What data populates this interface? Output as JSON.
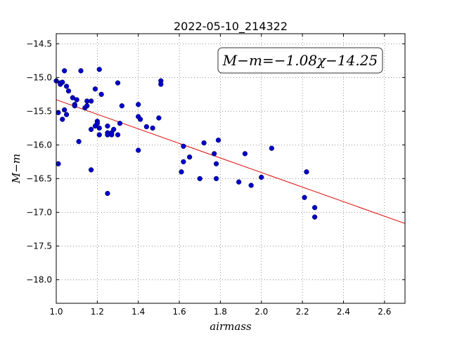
{
  "chart_data": {
    "type": "scatter",
    "title": "2022-05-10_214322",
    "xlabel": "airmass",
    "ylabel": "M−m",
    "xlim": [
      1.0,
      2.7
    ],
    "ylim": [
      -18.35,
      -14.35
    ],
    "y_inverted": true,
    "grid": true,
    "x_ticks": [
      1.0,
      1.2,
      1.4,
      1.6,
      1.8,
      2.0,
      2.2,
      2.4,
      2.6
    ],
    "x_tick_labels": [
      "1.0",
      "1.2",
      "1.4",
      "1.6",
      "1.8",
      "2.0",
      "2.2",
      "2.4",
      "2.6"
    ],
    "y_ticks": [
      -14.5,
      -15.0,
      -15.5,
      -16.0,
      -16.5,
      -17.0,
      -17.5,
      -18.0
    ],
    "y_tick_labels": [
      "−14.5",
      "−15.0",
      "−15.5",
      "−16.0",
      "−16.5",
      "−17.0",
      "−17.5",
      "−18.0"
    ],
    "annotation": "M−m=−1.08χ−14.25",
    "annotation_position": "top-right",
    "colors": {
      "points": "#0000cc",
      "fit": "#dd0000",
      "grid": "#555555"
    },
    "fit": {
      "slope": -1.08,
      "intercept": -14.25
    },
    "points": [
      [
        1.0,
        -15.05
      ],
      [
        1.01,
        -15.52
      ],
      [
        1.01,
        -16.28
      ],
      [
        1.02,
        -15.08
      ],
      [
        1.02,
        -15.1
      ],
      [
        1.03,
        -15.07
      ],
      [
        1.03,
        -15.62
      ],
      [
        1.04,
        -14.9
      ],
      [
        1.04,
        -15.48
      ],
      [
        1.05,
        -15.13
      ],
      [
        1.05,
        -15.55
      ],
      [
        1.06,
        -15.2
      ],
      [
        1.08,
        -15.3
      ],
      [
        1.09,
        -15.4
      ],
      [
        1.09,
        -15.42
      ],
      [
        1.1,
        -15.33
      ],
      [
        1.11,
        -15.95
      ],
      [
        1.12,
        -14.9
      ],
      [
        1.14,
        -15.45
      ],
      [
        1.15,
        -15.42
      ],
      [
        1.15,
        -15.35
      ],
      [
        1.17,
        -15.35
      ],
      [
        1.17,
        -15.77
      ],
      [
        1.17,
        -16.37
      ],
      [
        1.19,
        -15.17
      ],
      [
        1.19,
        -15.72
      ],
      [
        1.2,
        -15.65
      ],
      [
        1.2,
        -15.68
      ],
      [
        1.21,
        -15.75
      ],
      [
        1.21,
        -15.85
      ],
      [
        1.21,
        -14.88
      ],
      [
        1.22,
        -15.25
      ],
      [
        1.25,
        -15.72
      ],
      [
        1.25,
        -15.82
      ],
      [
        1.25,
        -15.85
      ],
      [
        1.25,
        -16.72
      ],
      [
        1.27,
        -15.85
      ],
      [
        1.27,
        -15.82
      ],
      [
        1.28,
        -15.77
      ],
      [
        1.3,
        -15.85
      ],
      [
        1.3,
        -15.08
      ],
      [
        1.31,
        -15.68
      ],
      [
        1.32,
        -15.42
      ],
      [
        1.4,
        -15.4
      ],
      [
        1.4,
        -15.58
      ],
      [
        1.4,
        -16.08
      ],
      [
        1.41,
        -15.62
      ],
      [
        1.44,
        -15.73
      ],
      [
        1.47,
        -15.75
      ],
      [
        1.5,
        -15.6
      ],
      [
        1.51,
        -15.05
      ],
      [
        1.51,
        -15.1
      ],
      [
        1.61,
        -16.4
      ],
      [
        1.62,
        -16.25
      ],
      [
        1.62,
        -16.02
      ],
      [
        1.65,
        -16.18
      ],
      [
        1.7,
        -16.5
      ],
      [
        1.72,
        -15.97
      ],
      [
        1.77,
        -16.13
      ],
      [
        1.78,
        -16.5
      ],
      [
        1.78,
        -16.28
      ],
      [
        1.79,
        -15.93
      ],
      [
        1.89,
        -16.55
      ],
      [
        1.92,
        -16.13
      ],
      [
        1.95,
        -16.6
      ],
      [
        2.0,
        -16.48
      ],
      [
        2.05,
        -16.05
      ],
      [
        2.21,
        -16.78
      ],
      [
        2.22,
        -16.4
      ],
      [
        2.26,
        -16.93
      ],
      [
        2.26,
        -17.07
      ]
    ]
  }
}
